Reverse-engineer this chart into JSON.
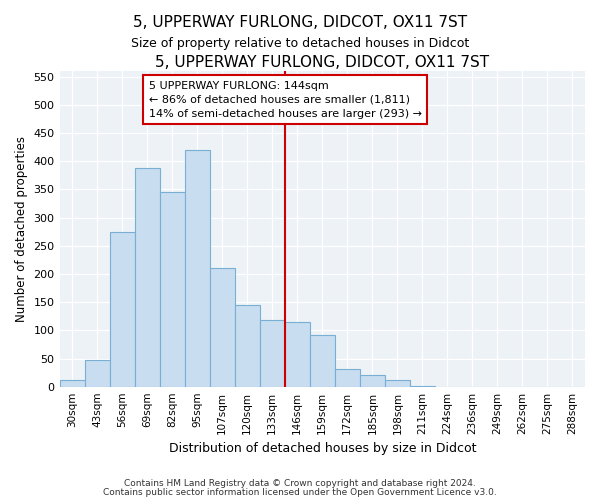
{
  "title": "5, UPPERWAY FURLONG, DIDCOT, OX11 7ST",
  "subtitle": "Size of property relative to detached houses in Didcot",
  "xlabel": "Distribution of detached houses by size in Didcot",
  "ylabel": "Number of detached properties",
  "bar_labels": [
    "30sqm",
    "43sqm",
    "56sqm",
    "69sqm",
    "82sqm",
    "95sqm",
    "107sqm",
    "120sqm",
    "133sqm",
    "146sqm",
    "159sqm",
    "172sqm",
    "185sqm",
    "198sqm",
    "211sqm",
    "224sqm",
    "236sqm",
    "249sqm",
    "262sqm",
    "275sqm",
    "288sqm"
  ],
  "bar_values": [
    12,
    48,
    275,
    388,
    345,
    420,
    210,
    145,
    118,
    115,
    92,
    32,
    20,
    12,
    2,
    0,
    0,
    0,
    0,
    0,
    0
  ],
  "bar_color": "#c8ddf0",
  "bar_edge_color": "#7aafd4",
  "reference_line_label": "5 UPPERWAY FURLONG: 144sqm",
  "annotation_line1": "← 86% of detached houses are smaller (1,811)",
  "annotation_line2": "14% of semi-detached houses are larger (293) →",
  "vline_color": "#cc0000",
  "ylim": [
    0,
    560
  ],
  "yticks": [
    0,
    50,
    100,
    150,
    200,
    250,
    300,
    350,
    400,
    450,
    500,
    550
  ],
  "footnote1": "Contains HM Land Registry data © Crown copyright and database right 2024.",
  "footnote2": "Contains public sector information licensed under the Open Government Licence v3.0.",
  "bg_color": "#edf2f7",
  "grid_color": "#ffffff"
}
